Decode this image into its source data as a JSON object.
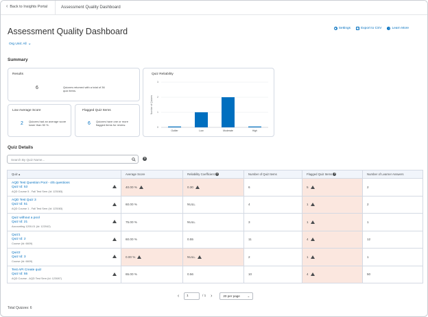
{
  "topbar": {
    "back_label": "Back to Insights Portal",
    "title": "Assessment Quality Dashboard"
  },
  "page": {
    "title": "Assessment Quality Dashboard",
    "actions": {
      "settings": "Settings",
      "export": "Export to CSV",
      "learn_more": "Learn More"
    },
    "org_unit": "Org Unit: All"
  },
  "summary": {
    "heading": "Summary",
    "results": {
      "title": "Results",
      "value": "6",
      "desc": "Quizzes returned with a total of 36 quiz items."
    },
    "low_avg": {
      "title": "Low Average Score",
      "value": "2",
      "desc": "Quizzes had an average score lower than 50 %."
    },
    "flagged": {
      "title": "Flagged Quiz Items",
      "value": "6",
      "desc": "Quizzes have one or more flagged items for review."
    }
  },
  "chart_data": {
    "type": "bar",
    "title": "Quiz Reliability",
    "ylabel": "Number of Quizzes",
    "xlabel": "",
    "categories": [
      "Outlier",
      "Low",
      "Moderate",
      "High"
    ],
    "values": [
      0,
      1,
      2,
      0
    ],
    "yticks": [
      "0",
      "1",
      "2",
      "3"
    ],
    "ylim": [
      0,
      3
    ],
    "grid": true,
    "bar_color": "#006fbf"
  },
  "details": {
    "heading": "Quiz Details",
    "search_placeholder": "Search By Quiz Name...",
    "columns": [
      "Quiz",
      "Average Score",
      "Reliability Coefficient",
      "Number of Quiz Items",
      "Flagged Quiz Items",
      "Number of Learner Answers"
    ],
    "rows": [
      {
        "name": "AQD Test Question Pool - 4/5 questions",
        "id": "Quiz Id: 53",
        "course": "AQD Course 5 - Fall Test Sem (Id: 123083)",
        "avg": "40.00 %",
        "rel": "0.30",
        "items": "6",
        "flagged": "5",
        "answers": "2"
      },
      {
        "name": "AQD Test Quiz 3",
        "id": "Quiz Id: 51",
        "course": "AQD Course 1 - Fall Test Sem (Id: 123083)",
        "avg": "60.00 %",
        "rel": "NULL",
        "items": "4",
        "flagged": "1",
        "answers": "2"
      },
      {
        "name": "Quiz without a pool",
        "id": "Quiz Id: 21",
        "course": "Accounting 1200-01 (Id: 122042)",
        "avg": "75.00 %",
        "rel": "NULL",
        "items": "3",
        "flagged": "1",
        "answers": "1"
      },
      {
        "name": "Quiz1",
        "id": "Quiz Id: 2",
        "course": "Course (Id: 6609)",
        "avg": "60.00 %",
        "rel": "0.55",
        "items": "11",
        "flagged": "4",
        "answers": "12"
      },
      {
        "name": "Quiz2",
        "id": "Quiz Id: 3",
        "course": "Course (Id: 6609)",
        "avg": "0.00 %",
        "rel": "NULL",
        "items": "2",
        "flagged": "1",
        "answers": "1"
      },
      {
        "name": "Test API Create quiz",
        "id": "Quiz Id: 55",
        "course": "AQD Course - AQD Test Sem (Id: 123087)",
        "avg": "65.00 %",
        "rel": "0.56",
        "items": "10",
        "flagged": "4",
        "answers": "50"
      }
    ]
  },
  "pager": {
    "page": "1",
    "of": "/ 1",
    "per_page": "20 per page"
  },
  "total": "Total Quizzes: 6",
  "colors": {
    "link": "#006fbf",
    "highlight": "#fbe7df",
    "header_bg": "#f1f5fb"
  }
}
